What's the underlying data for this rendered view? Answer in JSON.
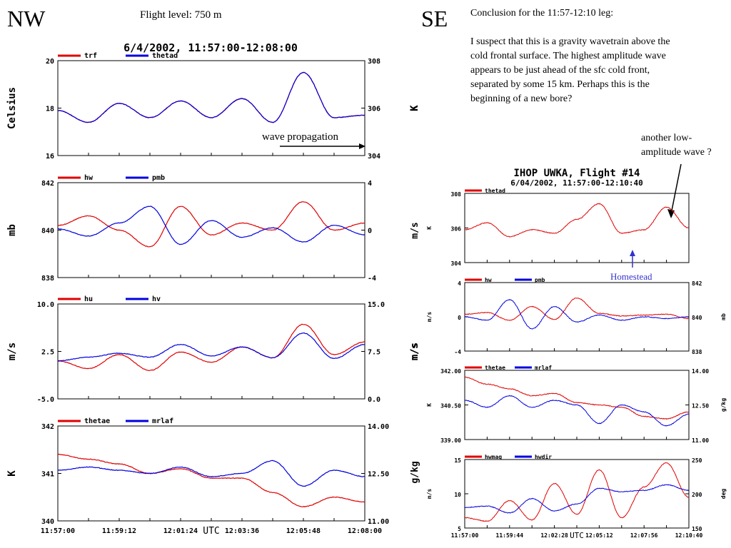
{
  "left_header": {
    "region": "NW",
    "flight_level": "Flight level: 750 m",
    "title": "6/4/2002, 11:57:00-12:08:00",
    "wave_label": "wave propagation",
    "utc_label": "UTC"
  },
  "right_header": {
    "region": "SE",
    "conclusion_lines": [
      "Conclusion for the 11:57-12:10 leg:",
      "",
      "I suspect that this is a gravity wavetrain above the",
      "cold frontal surface. The highest amplitude wave",
      "appears to be just ahead of the sfc cold front,",
      "separated by some 15 km. Perhaps this is the",
      "beginning of a new bore?"
    ],
    "another_wave_lines": [
      "another low-",
      "amplitude wave ?"
    ],
    "title": "IHOP UWKA, Flight #14",
    "subtitle": "6/04/2002, 11:57:00-12:10:40",
    "homestead_label": "Homestead",
    "utc_label": "UTC",
    "outer_labels": [
      "K",
      "m/s",
      "m/s",
      "g/kg"
    ]
  },
  "colors": {
    "series_a": "#e00000",
    "series_b": "#0000e0",
    "annotation_blue": "#3333cc"
  },
  "chart_data": [
    {
      "type": "line",
      "panel": "left-1",
      "ylabel_left": "Celsius",
      "ylabel_right": "K",
      "ylim_left": [
        16,
        20
      ],
      "ylim_right": [
        304,
        308
      ],
      "yticks_left": [
        "20",
        "18",
        "16"
      ],
      "yticks_right": [
        "308",
        "306",
        "304"
      ],
      "x": [
        "11:57:00",
        "11:58:06",
        "11:59:12",
        "12:00:18",
        "12:01:24",
        "12:02:30",
        "12:03:36",
        "12:04:42",
        "12:05:48",
        "12:06:54",
        "12:08:00"
      ],
      "series": [
        {
          "name": "trf",
          "axis": "left",
          "color": "#e00000",
          "values": [
            17.9,
            17.4,
            18.2,
            17.6,
            18.3,
            17.6,
            18.4,
            17.4,
            19.5,
            17.6,
            17.7
          ]
        },
        {
          "name": "thetad",
          "axis": "right",
          "color": "#0000e0",
          "values": [
            305.9,
            305.4,
            306.2,
            305.6,
            306.3,
            305.6,
            306.4,
            305.4,
            307.5,
            305.6,
            305.7
          ]
        }
      ]
    },
    {
      "type": "line",
      "panel": "left-2",
      "ylabel_left": "mb",
      "ylabel_right": "",
      "ylim_left": [
        838,
        842
      ],
      "ylim_right": [
        -4,
        4
      ],
      "yticks_left": [
        "842",
        "840",
        "838"
      ],
      "yticks_right": [
        "4",
        "0",
        "-4"
      ],
      "x": [
        "11:57:00",
        "11:58:06",
        "11:59:12",
        "12:00:18",
        "12:01:24",
        "12:02:30",
        "12:03:36",
        "12:04:42",
        "12:05:48",
        "12:06:54",
        "12:08:00"
      ],
      "series": [
        {
          "name": "hw",
          "axis": "left",
          "color": "#e00000",
          "values": [
            840.2,
            840.6,
            840.0,
            839.3,
            841.0,
            839.8,
            840.3,
            840.0,
            841.2,
            840.0,
            840.3
          ]
        },
        {
          "name": "pmb",
          "axis": "right",
          "color": "#0000e0",
          "values": [
            0.1,
            -0.5,
            0.6,
            2.0,
            -1.2,
            0.8,
            -0.6,
            0.2,
            -1.0,
            0.4,
            -0.4
          ]
        }
      ]
    },
    {
      "type": "line",
      "panel": "left-3",
      "ylabel_left": "m/s",
      "ylabel_right": "m/s",
      "ylim_left": [
        -5.0,
        10.0
      ],
      "ylim_right": [
        0.0,
        15.0
      ],
      "yticks_left": [
        "10.0",
        "2.5",
        "-5.0"
      ],
      "yticks_right": [
        "15.0",
        "7.5",
        "0.0"
      ],
      "x": [
        "11:57:00",
        "11:58:06",
        "11:59:12",
        "12:00:18",
        "12:01:24",
        "12:02:30",
        "12:03:36",
        "12:04:42",
        "12:05:48",
        "12:06:54",
        "12:08:00"
      ],
      "series": [
        {
          "name": "hu",
          "axis": "left",
          "color": "#e00000",
          "values": [
            1.0,
            -0.2,
            2.0,
            -0.5,
            2.4,
            0.8,
            3.2,
            1.5,
            6.8,
            2.0,
            4.0
          ]
        },
        {
          "name": "hv",
          "axis": "right",
          "color": "#0000e0",
          "values": [
            6.0,
            6.6,
            7.2,
            6.6,
            8.6,
            6.8,
            8.2,
            6.5,
            10.4,
            6.4,
            8.6
          ]
        }
      ]
    },
    {
      "type": "line",
      "panel": "left-4",
      "ylabel_left": "K",
      "ylabel_right": "",
      "ylim_left": [
        340,
        342
      ],
      "ylim_right": [
        11.0,
        14.0
      ],
      "yticks_left": [
        "342",
        "341",
        "340"
      ],
      "yticks_right": [
        "14.00",
        "12.50",
        "11.00"
      ],
      "x": [
        "11:57:00",
        "11:58:06",
        "11:59:12",
        "12:00:18",
        "12:01:24",
        "12:02:30",
        "12:03:36",
        "12:04:42",
        "12:05:48",
        "12:06:54",
        "12:08:00"
      ],
      "xticks": [
        "11:57:00",
        "11:59:12",
        "12:01:24",
        "12:03:36",
        "12:05:48",
        "12:08:00"
      ],
      "series": [
        {
          "name": "thetae",
          "axis": "left",
          "color": "#e00000",
          "values": [
            341.4,
            341.3,
            341.2,
            341.0,
            341.1,
            340.9,
            340.9,
            340.6,
            340.3,
            340.5,
            340.4
          ]
        },
        {
          "name": "mrlaf",
          "axis": "right",
          "color": "#0000e0",
          "values": [
            12.6,
            12.7,
            12.6,
            12.5,
            12.7,
            12.4,
            12.5,
            12.9,
            12.1,
            12.6,
            12.4
          ]
        }
      ]
    },
    {
      "type": "line",
      "panel": "right-1",
      "ylim_left": [
        304,
        308
      ],
      "yticks_left": [
        "308",
        "306",
        "304"
      ],
      "ylabel_left": "K",
      "x": [
        "11:57:00",
        "11:58:22",
        "11:59:44",
        "12:01:06",
        "12:02:28",
        "12:03:50",
        "12:05:12",
        "12:06:34",
        "12:07:56",
        "12:09:18",
        "12:10:40"
      ],
      "series": [
        {
          "name": "thetad",
          "axis": "left",
          "color": "#e00000",
          "values": [
            305.9,
            306.3,
            305.5,
            305.9,
            305.7,
            306.5,
            307.4,
            305.7,
            305.9,
            307.2,
            306.0
          ]
        }
      ]
    },
    {
      "type": "line",
      "panel": "right-2",
      "ylim_left": [
        -4,
        4
      ],
      "ylim_right": [
        838,
        842
      ],
      "yticks_left": [
        "4",
        "0",
        "-4"
      ],
      "yticks_right": [
        "842",
        "840",
        "838"
      ],
      "ylabel_left": "m/s",
      "ylabel_right": "mb",
      "x": [
        "11:57:00",
        "11:58:22",
        "11:59:44",
        "12:01:06",
        "12:02:28",
        "12:03:50",
        "12:05:12",
        "12:06:34",
        "12:07:56",
        "12:09:18",
        "12:10:40"
      ],
      "series": [
        {
          "name": "hw",
          "axis": "left",
          "color": "#e00000",
          "values": [
            0.3,
            0.5,
            -0.4,
            1.2,
            -0.3,
            2.2,
            0.4,
            0.1,
            0.2,
            0.3,
            -0.2
          ]
        },
        {
          "name": "pmb",
          "axis": "right",
          "color": "#0000e0",
          "values": [
            840.0,
            839.8,
            841.0,
            839.3,
            840.6,
            839.7,
            840.1,
            839.8,
            840.0,
            839.9,
            840.0
          ]
        }
      ]
    },
    {
      "type": "line",
      "panel": "right-3",
      "ylim_left": [
        339.0,
        342.0
      ],
      "ylim_right": [
        11.0,
        14.0
      ],
      "yticks_left": [
        "342.00",
        "340.50",
        "339.00"
      ],
      "yticks_right": [
        "14.00",
        "12.50",
        "11.00"
      ],
      "ylabel_left": "K",
      "ylabel_right": "g/kg",
      "x": [
        "11:57:00",
        "11:58:22",
        "11:59:44",
        "12:01:06",
        "12:02:28",
        "12:03:50",
        "12:05:12",
        "12:06:34",
        "12:07:56",
        "12:09:18",
        "12:10:40"
      ],
      "series": [
        {
          "name": "thetae",
          "axis": "left",
          "color": "#e00000",
          "values": [
            341.7,
            341.4,
            341.2,
            340.9,
            341.0,
            340.6,
            340.5,
            340.4,
            340.0,
            339.9,
            340.2
          ]
        },
        {
          "name": "mrlaf",
          "axis": "right",
          "color": "#0000e0",
          "values": [
            12.7,
            12.4,
            12.9,
            12.4,
            12.7,
            12.5,
            11.7,
            12.5,
            12.2,
            11.6,
            12.1
          ]
        }
      ]
    },
    {
      "type": "line",
      "panel": "right-4",
      "ylim_left": [
        5,
        15
      ],
      "ylim_right": [
        150,
        250
      ],
      "yticks_left": [
        "15",
        "10",
        "5"
      ],
      "yticks_right": [
        "250",
        "200",
        "150"
      ],
      "ylabel_left": "m/s",
      "ylabel_right": "deg",
      "x": [
        "11:57:00",
        "11:58:22",
        "11:59:44",
        "12:01:06",
        "12:02:28",
        "12:03:50",
        "12:05:12",
        "12:06:34",
        "12:07:56",
        "12:09:18",
        "12:10:40"
      ],
      "xticks": [
        "11:57:00",
        "11:59:44",
        "12:02:28",
        "12:05:12",
        "12:07:56",
        "12:10:40"
      ],
      "series": [
        {
          "name": "hwmag",
          "axis": "left",
          "color": "#e00000",
          "values": [
            6.5,
            6.0,
            9.0,
            6.2,
            11.5,
            7.0,
            13.5,
            6.5,
            11.0,
            14.5,
            9.5
          ]
        },
        {
          "name": "hwdir",
          "axis": "right",
          "color": "#0000e0",
          "values": [
            180,
            182,
            172,
            193,
            175,
            185,
            208,
            203,
            205,
            213,
            205
          ]
        }
      ]
    }
  ]
}
